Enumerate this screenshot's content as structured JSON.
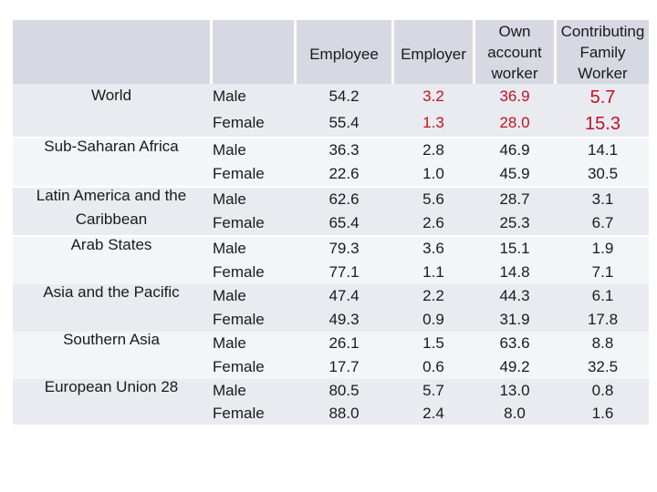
{
  "table": {
    "headers": [
      "Employee",
      "Employer",
      "Own account worker",
      "Contributing Family Worker"
    ],
    "regions": [
      {
        "name": "World",
        "rows": [
          {
            "sex": "Male",
            "values": [
              "54.2",
              "3.2",
              "36.9",
              "5.7"
            ]
          },
          {
            "sex": "Female",
            "values": [
              "55.4",
              "1.3",
              "28.0",
              "15.3"
            ]
          }
        ]
      },
      {
        "name": "Sub-Saharan Africa",
        "rows": [
          {
            "sex": "Male",
            "values": [
              "36.3",
              "2.8",
              "46.9",
              "14.1"
            ]
          },
          {
            "sex": "Female",
            "values": [
              "22.6",
              "1.0",
              "45.9",
              "30.5"
            ]
          }
        ]
      },
      {
        "name": "Latin America and the Caribbean",
        "rows": [
          {
            "sex": "Male",
            "values": [
              "62.6",
              "5.6",
              "28.7",
              "3.1"
            ]
          },
          {
            "sex": "Female",
            "values": [
              "65.4",
              "2.6",
              "25.3",
              "6.7"
            ]
          }
        ]
      },
      {
        "name": "Arab States",
        "rows": [
          {
            "sex": "Male",
            "values": [
              "79.3",
              "3.6",
              "15.1",
              "1.9"
            ]
          },
          {
            "sex": "Female",
            "values": [
              "77.1",
              "1.1",
              "14.8",
              "7.1"
            ]
          }
        ]
      },
      {
        "name": "Asia and the Pacific",
        "rows": [
          {
            "sex": "Male",
            "values": [
              "47.4",
              "2.2",
              "44.3",
              "6.1"
            ]
          },
          {
            "sex": "Female",
            "values": [
              "49.3",
              "0.9",
              "31.9",
              "17.8"
            ]
          }
        ]
      },
      {
        "name": "Southern Asia",
        "rows": [
          {
            "sex": "Male",
            "values": [
              "26.1",
              "1.5",
              "63.6",
              "8.8"
            ]
          },
          {
            "sex": "Female",
            "values": [
              "17.7",
              "0.6",
              "49.2",
              "32.5"
            ]
          }
        ]
      },
      {
        "name": "European Union 28",
        "rows": [
          {
            "sex": "Male",
            "values": [
              "80.5",
              "5.7",
              "13.0",
              "0.8"
            ]
          },
          {
            "sex": "Female",
            "values": [
              "88.0",
              "2.4",
              "8.0",
              "1.6"
            ]
          }
        ]
      }
    ],
    "highlight_color": "#c0121f",
    "header_color": "#d6d9e2"
  }
}
